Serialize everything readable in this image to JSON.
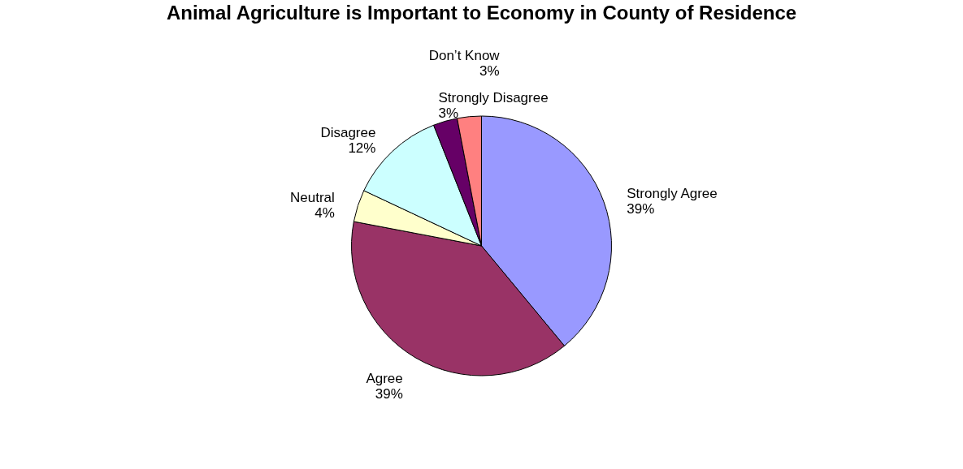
{
  "chart_data": {
    "type": "pie",
    "title": "Animal Agriculture is Important to Economy in County of Residence",
    "categories": [
      "Strongly Agree",
      "Agree",
      "Neutral",
      "Disagree",
      "Strongly Disagree",
      "Don’t Know"
    ],
    "values": [
      39,
      39,
      4,
      12,
      3,
      3
    ],
    "value_labels": [
      "39%",
      "39%",
      "4%",
      "12%",
      "3%",
      "3%"
    ],
    "colors": [
      "#9999ff",
      "#993366",
      "#ffffcc",
      "#ccffff",
      "#660066",
      "#ff8080"
    ],
    "legend": false
  }
}
